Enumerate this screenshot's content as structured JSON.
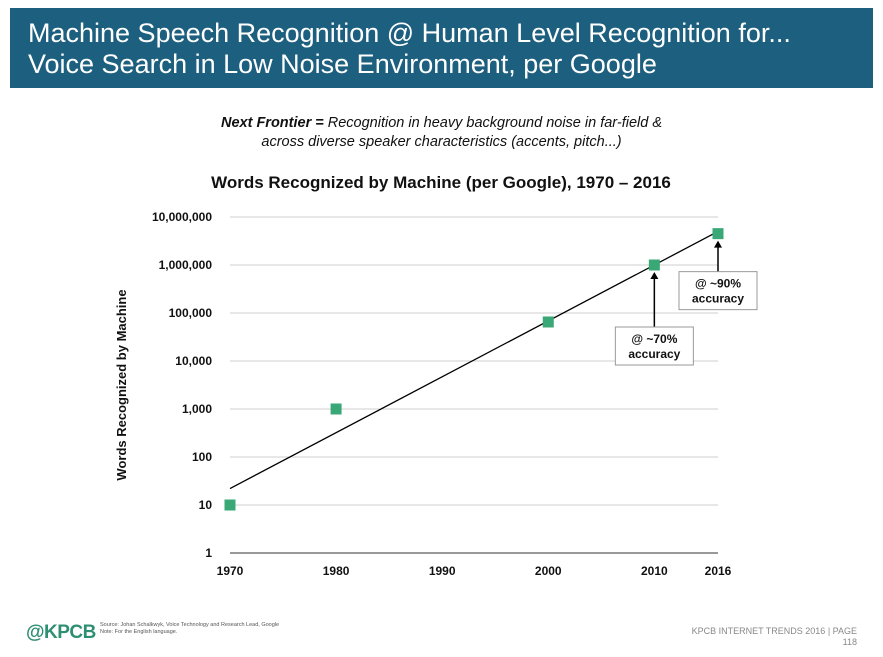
{
  "header": {
    "title_line1": "Machine Speech Recognition @ Human Level Recognition for...",
    "title_line2": "Voice Search in Low Noise Environment, per Google"
  },
  "frontier": {
    "label": "Next Frontier =",
    "text_line1": " Recognition in heavy background noise in far-field &",
    "text_line2": "across diverse speaker characteristics (accents, pitch...)"
  },
  "chart_data": {
    "type": "scatter",
    "title": "Words Recognized by Machine (per Google), 1970 – 2016",
    "xlabel": "",
    "ylabel": "Words Recognized by Machine",
    "yscale": "log",
    "xlim": [
      1970,
      2016
    ],
    "ylim": [
      1,
      10000000
    ],
    "x_ticks": [
      1970,
      1980,
      1990,
      2000,
      2010,
      2016
    ],
    "y_ticks": [
      {
        "value": 1,
        "label": "1"
      },
      {
        "value": 10,
        "label": "10"
      },
      {
        "value": 100,
        "label": "100"
      },
      {
        "value": 1000,
        "label": "1,000"
      },
      {
        "value": 10000,
        "label": "10,000"
      },
      {
        "value": 100000,
        "label": "100,000"
      },
      {
        "value": 1000000,
        "label": "1,000,000"
      },
      {
        "value": 10000000,
        "label": "10,000,000"
      }
    ],
    "grid": true,
    "marker_color": "#3aa876",
    "trendline_color": "#000000",
    "series": [
      {
        "name": "Words Recognized",
        "x": [
          1970,
          1980,
          2000,
          2010,
          2016
        ],
        "y": [
          10,
          1000,
          65000,
          1000000,
          4500000
        ]
      }
    ],
    "trendline": {
      "x": [
        1970,
        2016
      ],
      "y": [
        22,
        5000000
      ]
    },
    "annotations": [
      {
        "x": 2010,
        "y": 1000000,
        "line1": "@ ~70%",
        "line2": "accuracy",
        "placement": "below"
      },
      {
        "x": 2016,
        "y": 4500000,
        "line1": "@ ~90%",
        "line2": "accuracy",
        "placement": "below"
      }
    ]
  },
  "footer": {
    "logo": "@KPCB",
    "source_line1": "Source: Johan Schalkwyk, Voice Technology and Research Lead, Google",
    "source_line2": "Note: For the English language.",
    "right_line1": "KPCB INTERNET TRENDS 2016  |  PAGE",
    "right_line2": "118"
  }
}
